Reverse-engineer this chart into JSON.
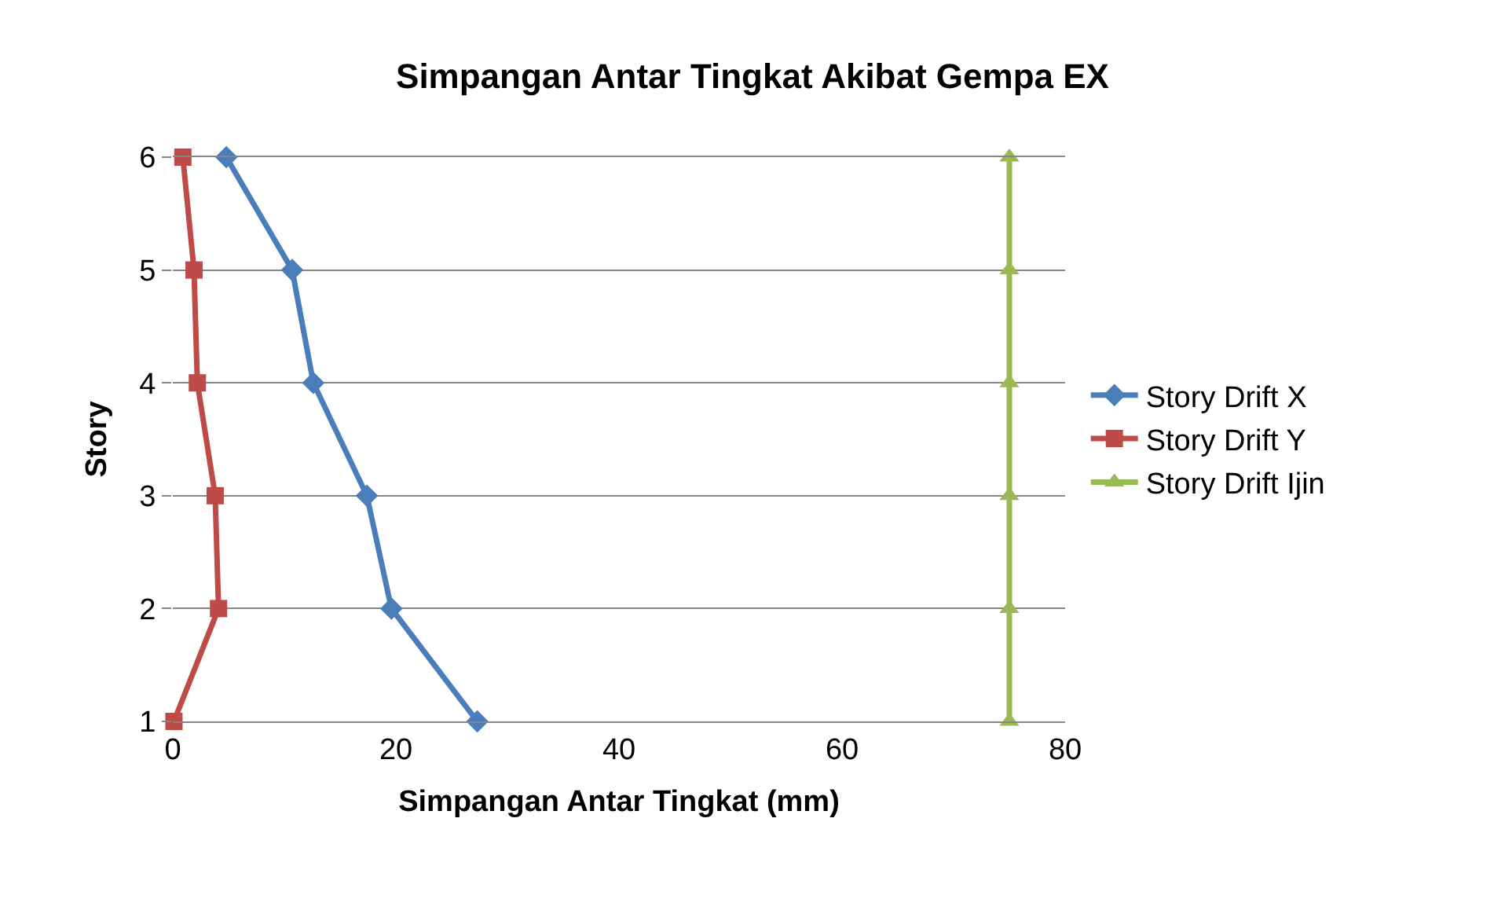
{
  "chart_data": {
    "type": "line",
    "title": "Simpangan Antar Tingkat Akibat Gempa EX",
    "xlabel": "Simpangan Antar Tingkat (mm)",
    "ylabel": "Story",
    "series": [
      {
        "name": "Story Drift X",
        "color": "#4a7ebb",
        "marker": "diamond",
        "x": [
          27.3,
          19.6,
          17.4,
          12.6,
          10.7,
          4.8
        ],
        "values": [
          1,
          2,
          3,
          4,
          5,
          6
        ]
      },
      {
        "name": "Story Drift Y",
        "color": "#be4b48",
        "marker": "square",
        "x": [
          0.1,
          4.1,
          3.8,
          2.2,
          1.9,
          0.9
        ],
        "values": [
          1,
          2,
          3,
          4,
          5,
          6
        ]
      },
      {
        "name": "Story Drift Ijin",
        "color": "#98b954",
        "marker": "triangle",
        "x": [
          75,
          75,
          75,
          75,
          75,
          75
        ],
        "values": [
          1,
          2,
          3,
          4,
          5,
          6
        ]
      }
    ],
    "xlim": [
      0,
      80
    ],
    "xticks": [
      0,
      20,
      40,
      60,
      80
    ],
    "ylim": [
      1,
      6
    ],
    "yticks": [
      1,
      2,
      3,
      4,
      5,
      6
    ],
    "grid": "y",
    "legend": "right",
    "line_style": "solid"
  }
}
